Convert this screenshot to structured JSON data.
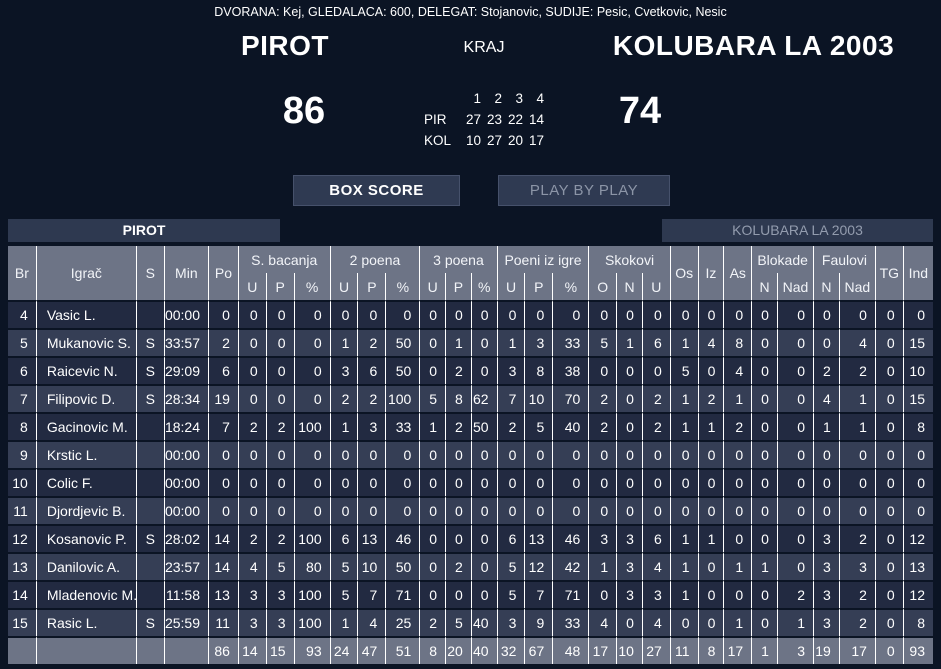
{
  "meta_line": "DVORANA: Kej, GLEDALACA: 600, DELEGAT: Stojanovic, SUDIJE: Pesic, Cvetkovic, Nesic",
  "scoreboard": {
    "home_name": "PIROT",
    "away_name": "KOLUBARA LA 2003",
    "status": "KRAJ",
    "home_score": "86",
    "away_score": "74",
    "quarters": {
      "headers": [
        "1",
        "2",
        "3",
        "4"
      ],
      "rows": [
        {
          "label": "PIR",
          "values": [
            "27",
            "23",
            "22",
            "14"
          ]
        },
        {
          "label": "KOL",
          "values": [
            "10",
            "27",
            "20",
            "17"
          ]
        }
      ]
    }
  },
  "nav": {
    "box_score": "BOX SCORE",
    "play_by_play": "PLAY BY PLAY"
  },
  "team_tabs": {
    "home": "PIROT",
    "away": "KOLUBARA LA 2003"
  },
  "table": {
    "header": {
      "cols": [
        "Br",
        "Igrač",
        "S",
        "Min",
        "Po"
      ],
      "groups3": [
        {
          "label": "S. bacanja",
          "subs": [
            "U",
            "P",
            "%"
          ]
        },
        {
          "label": "2 poena",
          "subs": [
            "U",
            "P",
            "%"
          ]
        },
        {
          "label": "3 poena",
          "subs": [
            "U",
            "P",
            "%"
          ]
        },
        {
          "label": "Poeni iz igre",
          "subs": [
            "U",
            "P",
            "%"
          ]
        },
        {
          "label": "Skokovi",
          "subs": [
            "O",
            "N",
            "U"
          ]
        }
      ],
      "mids": [
        "Os",
        "Iz",
        "As"
      ],
      "groups2": [
        {
          "label": "Blokade",
          "subs": [
            "N",
            "Nad"
          ]
        },
        {
          "label": "Faulovi",
          "subs": [
            "N",
            "Nad"
          ]
        }
      ],
      "tails": [
        "TG",
        "Ind"
      ]
    },
    "stat_order": [
      "Po",
      "SB U",
      "SB P",
      "SB %",
      "2P U",
      "2P P",
      "2P %",
      "3P U",
      "3P P",
      "3P %",
      "FG U",
      "FG P",
      "FG %",
      "Sk O",
      "Sk N",
      "Sk U",
      "Os",
      "Iz",
      "As",
      "Bl N",
      "Bl Nad",
      "F N",
      "F Nad",
      "TG",
      "Ind"
    ],
    "players": [
      {
        "br": "4",
        "name": "Vasic L.",
        "s": "",
        "min": "00:00",
        "stats": [
          "0",
          "0",
          "0",
          "0",
          "0",
          "0",
          "0",
          "0",
          "0",
          "0",
          "0",
          "0",
          "0",
          "0",
          "0",
          "0",
          "0",
          "0",
          "0",
          "0",
          "0",
          "0",
          "0",
          "0",
          "0"
        ]
      },
      {
        "br": "5",
        "name": "Mukanovic S.",
        "s": "S",
        "min": "33:57",
        "stats": [
          "2",
          "0",
          "0",
          "0",
          "1",
          "2",
          "50",
          "0",
          "1",
          "0",
          "1",
          "3",
          "33",
          "5",
          "1",
          "6",
          "1",
          "4",
          "8",
          "0",
          "0",
          "0",
          "4",
          "0",
          "15"
        ]
      },
      {
        "br": "6",
        "name": "Raicevic N.",
        "s": "S",
        "min": "29:09",
        "stats": [
          "6",
          "0",
          "0",
          "0",
          "3",
          "6",
          "50",
          "0",
          "2",
          "0",
          "3",
          "8",
          "38",
          "0",
          "0",
          "0",
          "5",
          "0",
          "4",
          "0",
          "0",
          "2",
          "2",
          "0",
          "10"
        ]
      },
      {
        "br": "7",
        "name": "Filipovic D.",
        "s": "S",
        "min": "28:34",
        "stats": [
          "19",
          "0",
          "0",
          "0",
          "2",
          "2",
          "100",
          "5",
          "8",
          "62",
          "7",
          "10",
          "70",
          "2",
          "0",
          "2",
          "1",
          "2",
          "1",
          "0",
          "0",
          "4",
          "1",
          "0",
          "15"
        ]
      },
      {
        "br": "8",
        "name": "Gacinovic M.",
        "s": "",
        "min": "18:24",
        "stats": [
          "7",
          "2",
          "2",
          "100",
          "1",
          "3",
          "33",
          "1",
          "2",
          "50",
          "2",
          "5",
          "40",
          "2",
          "0",
          "2",
          "1",
          "1",
          "2",
          "0",
          "0",
          "1",
          "1",
          "0",
          "8"
        ]
      },
      {
        "br": "9",
        "name": "Krstic L.",
        "s": "",
        "min": "00:00",
        "stats": [
          "0",
          "0",
          "0",
          "0",
          "0",
          "0",
          "0",
          "0",
          "0",
          "0",
          "0",
          "0",
          "0",
          "0",
          "0",
          "0",
          "0",
          "0",
          "0",
          "0",
          "0",
          "0",
          "0",
          "0",
          "0"
        ]
      },
      {
        "br": "10",
        "name": "Colic F.",
        "s": "",
        "min": "00:00",
        "stats": [
          "0",
          "0",
          "0",
          "0",
          "0",
          "0",
          "0",
          "0",
          "0",
          "0",
          "0",
          "0",
          "0",
          "0",
          "0",
          "0",
          "0",
          "0",
          "0",
          "0",
          "0",
          "0",
          "0",
          "0",
          "0"
        ]
      },
      {
        "br": "11",
        "name": "Djordjevic B.",
        "s": "",
        "min": "00:00",
        "stats": [
          "0",
          "0",
          "0",
          "0",
          "0",
          "0",
          "0",
          "0",
          "0",
          "0",
          "0",
          "0",
          "0",
          "0",
          "0",
          "0",
          "0",
          "0",
          "0",
          "0",
          "0",
          "0",
          "0",
          "0",
          "0"
        ]
      },
      {
        "br": "12",
        "name": "Kosanovic P.",
        "s": "S",
        "min": "28:02",
        "stats": [
          "14",
          "2",
          "2",
          "100",
          "6",
          "13",
          "46",
          "0",
          "0",
          "0",
          "6",
          "13",
          "46",
          "3",
          "3",
          "6",
          "1",
          "1",
          "0",
          "0",
          "0",
          "3",
          "2",
          "0",
          "12"
        ]
      },
      {
        "br": "13",
        "name": "Danilovic A.",
        "s": "",
        "min": "23:57",
        "stats": [
          "14",
          "4",
          "5",
          "80",
          "5",
          "10",
          "50",
          "0",
          "2",
          "0",
          "5",
          "12",
          "42",
          "1",
          "3",
          "4",
          "1",
          "0",
          "1",
          "1",
          "0",
          "3",
          "3",
          "0",
          "13"
        ]
      },
      {
        "br": "14",
        "name": "Mladenovic M.",
        "s": "",
        "min": "11:58",
        "stats": [
          "13",
          "3",
          "3",
          "100",
          "5",
          "7",
          "71",
          "0",
          "0",
          "0",
          "5",
          "7",
          "71",
          "0",
          "3",
          "3",
          "1",
          "0",
          "0",
          "0",
          "2",
          "3",
          "2",
          "0",
          "12"
        ]
      },
      {
        "br": "15",
        "name": "Rasic L.",
        "s": "S",
        "min": "25:59",
        "stats": [
          "11",
          "3",
          "3",
          "100",
          "1",
          "4",
          "25",
          "2",
          "5",
          "40",
          "3",
          "9",
          "33",
          "4",
          "0",
          "4",
          "0",
          "0",
          "1",
          "0",
          "1",
          "3",
          "2",
          "0",
          "8"
        ]
      }
    ],
    "totals": {
      "stats": [
        "86",
        "14",
        "15",
        "93",
        "24",
        "47",
        "51",
        "8",
        "20",
        "40",
        "32",
        "67",
        "48",
        "17",
        "10",
        "27",
        "11",
        "8",
        "17",
        "1",
        "3",
        "19",
        "17",
        "0",
        "93"
      ]
    }
  },
  "colors": {
    "background": "#0b1424",
    "row_dark": "#222a41",
    "row_light": "#353e55",
    "header_gray": "#6d7486",
    "panel": "#2e3950",
    "text_muted": "#8c95a7",
    "separator": "#ffffff"
  }
}
